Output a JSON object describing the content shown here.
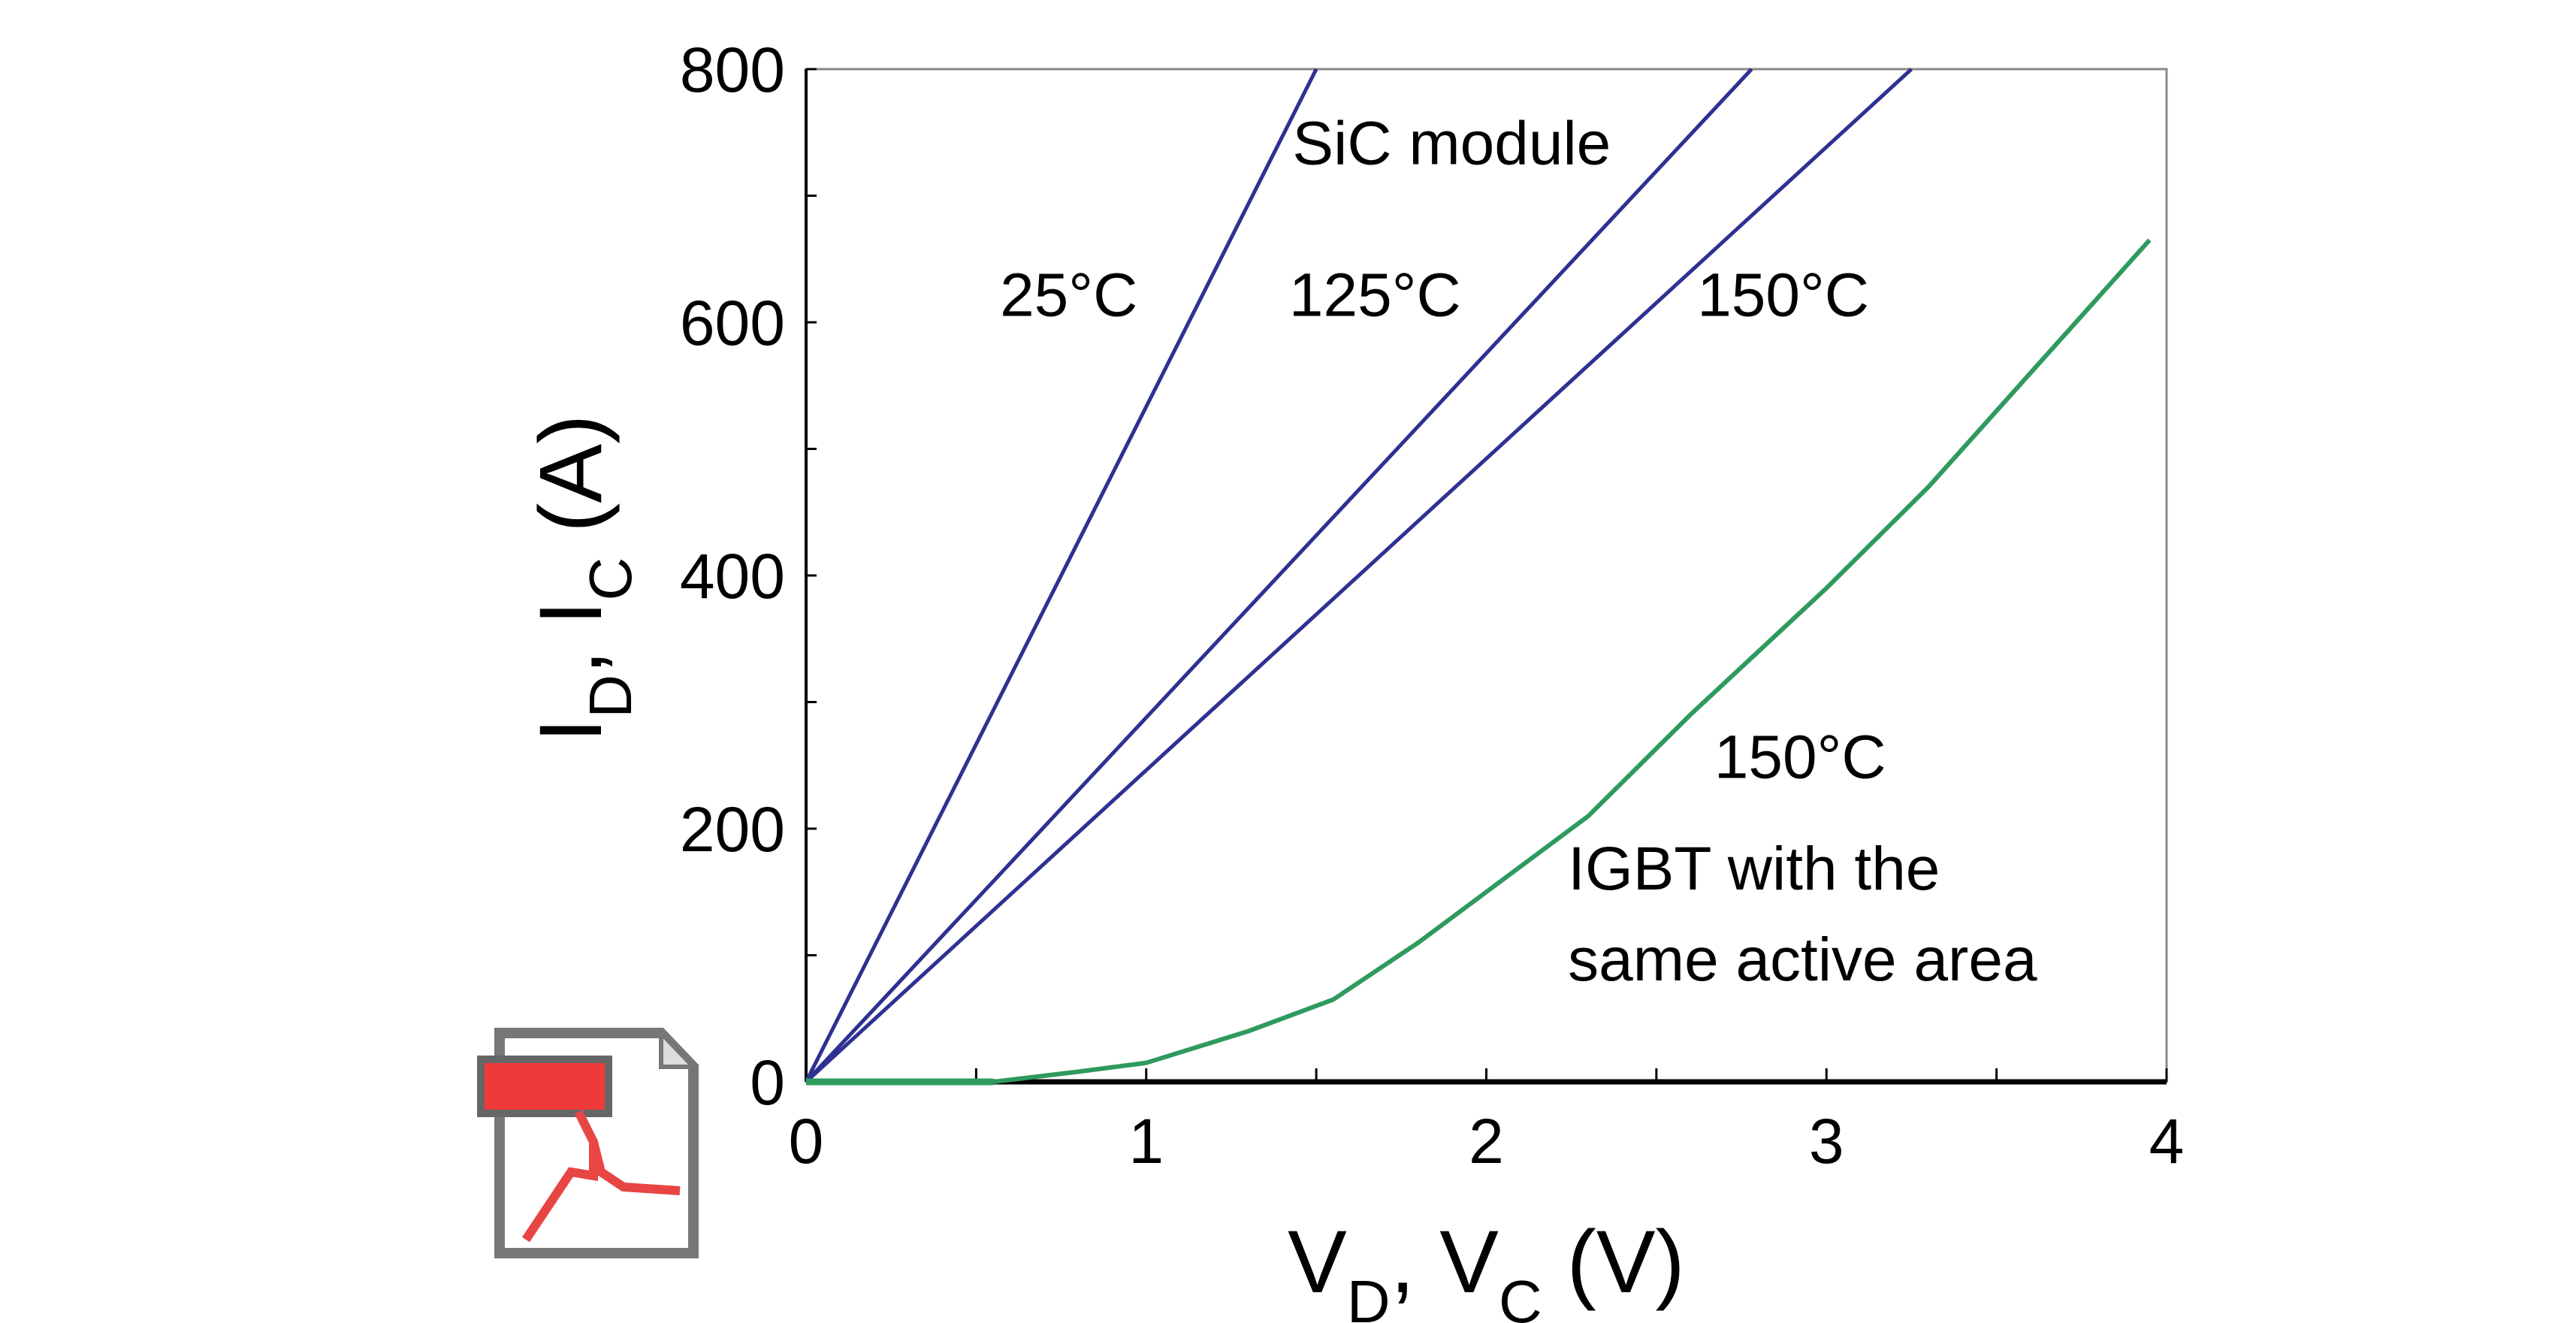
{
  "chart_data": {
    "type": "line",
    "title": "",
    "xlabel": {
      "main": "V",
      "sub1": "D",
      "sep": ", V",
      "sub2": "C",
      "unit": " (V)"
    },
    "ylabel": {
      "main": "I",
      "sub1": "D",
      "sep": ", I",
      "sub2": "C",
      "unit": " (A)"
    },
    "xlim": [
      0,
      4
    ],
    "ylim": [
      0,
      800
    ],
    "xticks": [
      "0",
      "1",
      "2",
      "3",
      "4"
    ],
    "yticks": [
      "0",
      "200",
      "400",
      "600",
      "800"
    ],
    "grid": false,
    "series": [
      {
        "name": "SiC module 25°C",
        "color": "#2e3192",
        "x": [
          0,
          1.5
        ],
        "y": [
          0,
          800
        ]
      },
      {
        "name": "SiC module 125°C",
        "color": "#2e3192",
        "x": [
          0,
          2.78
        ],
        "y": [
          0,
          800
        ]
      },
      {
        "name": "SiC module 150°C",
        "color": "#2e3192",
        "x": [
          0,
          3.25
        ],
        "y": [
          0,
          800
        ]
      },
      {
        "name": "IGBT 150°C",
        "color": "#2e9a5e",
        "x": [
          0,
          0.55,
          0.8,
          1.0,
          1.3,
          1.55,
          1.8,
          2.0,
          2.3,
          2.6,
          3.0,
          3.3,
          3.6,
          3.95
        ],
        "y": [
          0,
          0,
          8,
          15,
          40,
          65,
          110,
          150,
          210,
          290,
          390,
          470,
          560,
          665
        ]
      }
    ],
    "annotations": [
      {
        "text": "SiC module",
        "x": 1.43,
        "y": 725
      },
      {
        "text": "25°C",
        "x": 0.57,
        "y": 605
      },
      {
        "text": "125°C",
        "x": 1.42,
        "y": 605
      },
      {
        "text": "150°C",
        "x": 2.62,
        "y": 605
      },
      {
        "text": "150°C",
        "x": 2.67,
        "y": 240
      },
      {
        "text": "IGBT with the",
        "x": 2.24,
        "y": 152
      },
      {
        "text": "same active area",
        "x": 2.24,
        "y": 80
      }
    ]
  },
  "icons": {
    "pdf": "pdf-file-icon"
  }
}
